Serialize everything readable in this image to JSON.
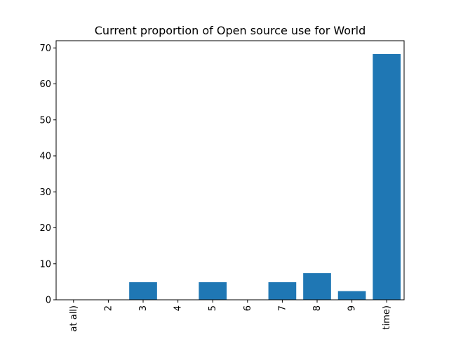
{
  "chart_data": {
    "type": "bar",
    "title": "Current proportion of Open source use for World",
    "xlabel": "",
    "ylabel": "",
    "categories": [
      "at all)",
      "2",
      "3",
      "4",
      "5",
      "6",
      "7",
      "8",
      "9",
      "time)"
    ],
    "values": [
      0,
      0,
      4.9,
      0,
      4.9,
      0,
      4.9,
      7.4,
      2.4,
      68.3
    ],
    "ylim": [
      0,
      72
    ],
    "yticks": [
      0,
      10,
      20,
      30,
      40,
      50,
      60,
      70
    ],
    "grid": false,
    "legend": "none",
    "bar_color": "#1f77b4"
  }
}
